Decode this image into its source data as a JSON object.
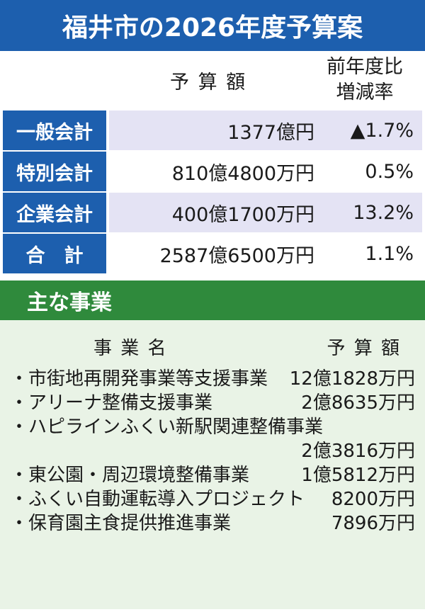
{
  "title": "福井市の2026年度予算案",
  "summary": {
    "header": {
      "budget": "予 算 額",
      "change": [
        "前年度比",
        "増減率"
      ]
    },
    "rows": [
      {
        "label": "一般会計",
        "budget": "1377億円",
        "change": "▲1.7%"
      },
      {
        "label": "特別会計",
        "budget": "810億4800万円",
        "change": "0.5%"
      },
      {
        "label": "企業会計",
        "budget": "400億1700万円",
        "change": "13.2%"
      },
      {
        "label": "合　計",
        "budget": "2587億6500万円",
        "change": "1.1%"
      }
    ]
  },
  "projects": {
    "title": "主な事業",
    "header": {
      "name": "事 業 名",
      "budget": "予 算 額"
    },
    "items": [
      {
        "name": "・市街地再開発事業等支援事業",
        "budget": "12億1828万円"
      },
      {
        "name": "・アリーナ整備支援事業",
        "budget": "2億8635万円"
      },
      {
        "name": "・ハピラインふくい新駅関連整備事業",
        "budget": "2億3816万円"
      },
      {
        "name": "・東公園・周辺環境整備事業",
        "budget": "1億5812万円"
      },
      {
        "name": "・ふくい自動運転導入プロジェクト",
        "budget": "8200万円"
      },
      {
        "name": "・保育園主食提供推進事業",
        "budget": "7896万円"
      }
    ]
  }
}
